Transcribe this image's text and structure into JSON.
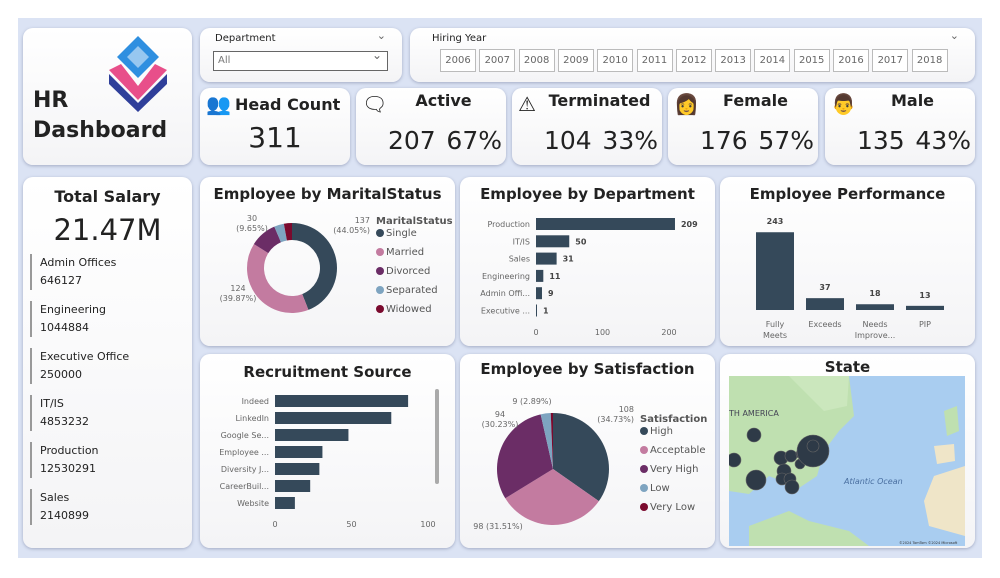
{
  "header": {
    "title_line1": "HR",
    "title_line2": "Dashboard"
  },
  "filters": {
    "department": {
      "label": "Department",
      "value": "All"
    },
    "hiring_year": {
      "label": "Hiring Year",
      "years": [
        "2006",
        "2007",
        "2008",
        "2009",
        "2010",
        "2011",
        "2012",
        "2013",
        "2014",
        "2015",
        "2016",
        "2017",
        "2018"
      ]
    }
  },
  "kpis": [
    {
      "label": "Head Count",
      "value": "311",
      "pct": "",
      "icon": "people-group-icon"
    },
    {
      "label": "Active",
      "value": "207",
      "pct": "67%",
      "icon": "active-users-icon"
    },
    {
      "label": "Terminated",
      "value": "104",
      "pct": "33%",
      "icon": "terminated-icon"
    },
    {
      "label": "Female",
      "value": "176",
      "pct": "57%",
      "icon": "female-icon"
    },
    {
      "label": "Male",
      "value": "135",
      "pct": "43%",
      "icon": "male-icon"
    }
  ],
  "salary": {
    "title": "Total Salary",
    "total": "21.47M",
    "items": [
      {
        "dept": "Admin Offices",
        "value": "646127"
      },
      {
        "dept": "Engineering",
        "value": "1044884"
      },
      {
        "dept": "Executive Office",
        "value": "250000"
      },
      {
        "dept": "IT/IS",
        "value": "4853232"
      },
      {
        "dept": "Production",
        "value": "12530291"
      },
      {
        "dept": "Sales",
        "value": "2140899"
      }
    ]
  },
  "colors": {
    "dark": "#35495a",
    "pink": "#c37ba0",
    "purple": "#6b2d66",
    "lightblue": "#7ea4c0",
    "darkred": "#7a0a2e"
  },
  "chart_data": [
    {
      "id": "marital",
      "type": "pie",
      "title": "Employee by MaritalStatus",
      "legend_title": "MaritalStatus",
      "legend": "right",
      "hole": true,
      "categories": [
        "Single",
        "Married",
        "Divorced",
        "Separated",
        "Widowed"
      ],
      "values": [
        137,
        124,
        30,
        11,
        9
      ],
      "labels": [
        "137\n(44.05%)",
        "124\n(39.87%)",
        "30\n(9.65%)"
      ]
    },
    {
      "id": "dept",
      "type": "bar",
      "orientation": "horizontal",
      "title": "Employee by Department",
      "categories": [
        "Production",
        "IT/IS",
        "Sales",
        "Engineering",
        "Admin Offi...",
        "Executive ..."
      ],
      "values": [
        209,
        50,
        31,
        11,
        9,
        1
      ],
      "xticks": [
        "0",
        "100",
        "200"
      ],
      "xlim": [
        0,
        220
      ]
    },
    {
      "id": "perf",
      "type": "bar",
      "title": "Employee Performance",
      "categories": [
        "Fully Meets",
        "Exceeds",
        "Needs Improve...",
        "PIP"
      ],
      "values": [
        243,
        37,
        18,
        13
      ]
    },
    {
      "id": "recruit",
      "type": "bar",
      "orientation": "horizontal",
      "title": "Recruitment Source",
      "categories": [
        "Indeed",
        "LinkedIn",
        "Google Se...",
        "Employee ...",
        "Diversity J...",
        "CareerBuil...",
        "Website"
      ],
      "values": [
        87,
        76,
        48,
        31,
        29,
        23,
        13
      ],
      "xticks": [
        "0",
        "50",
        "100"
      ],
      "xlim": [
        0,
        100
      ]
    },
    {
      "id": "satis",
      "type": "pie",
      "title": "Employee by Satisfaction",
      "legend_title": "Satisfaction",
      "legend": "right",
      "hole": false,
      "categories": [
        "High",
        "Acceptable",
        "Very High",
        "Low",
        "Very Low"
      ],
      "values": [
        108,
        98,
        94,
        9,
        2
      ],
      "labels": [
        "108\n(34.73%)",
        "98 (31.51%)",
        "94\n(30.23%)",
        "9 (2.89%)"
      ]
    }
  ],
  "map": {
    "title": "State",
    "labels": [
      "TH AMERICA",
      "Atlantic Ocean"
    ],
    "attribution": "©2024 TomTom ©2024 Microsoft"
  }
}
